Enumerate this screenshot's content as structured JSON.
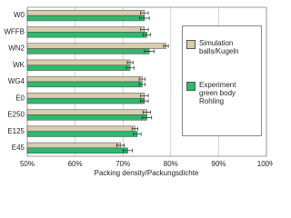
{
  "chart_data": {
    "type": "hbar",
    "xlabel": "Packing density/Packungsdichte",
    "categories": [
      "W0",
      "WFFB",
      "WN2",
      "WK",
      "WG4",
      "E0",
      "E250",
      "E125",
      "E45"
    ],
    "series": [
      {
        "name": "Simulation balls/Kugeln",
        "color": "#d8ccae",
        "values": [
          74.5,
          74.5,
          79,
          71.5,
          74,
          74.5,
          75,
          72.5,
          69.5
        ],
        "errors": [
          0.8,
          0.8,
          0.5,
          0.6,
          0.6,
          0.8,
          0.8,
          0.6,
          0.8
        ]
      },
      {
        "name": "Experiment green body Rohling",
        "color": "#2fb86e",
        "values": [
          74.5,
          75,
          75.5,
          71.5,
          74,
          74.5,
          75,
          73,
          71
        ],
        "errors": [
          1,
          0.8,
          1,
          0.8,
          0.6,
          0.8,
          1,
          0.8,
          1
        ]
      }
    ],
    "xlim": [
      50,
      100
    ],
    "xticks": [
      {
        "value": 50,
        "label": "50%"
      },
      {
        "value": 60,
        "label": "60%"
      },
      {
        "value": 70,
        "label": "70%"
      },
      {
        "value": 80,
        "label": "80%"
      },
      {
        "value": 90,
        "label": "90%"
      },
      {
        "value": 100,
        "label": "100%"
      }
    ],
    "grid": true
  }
}
